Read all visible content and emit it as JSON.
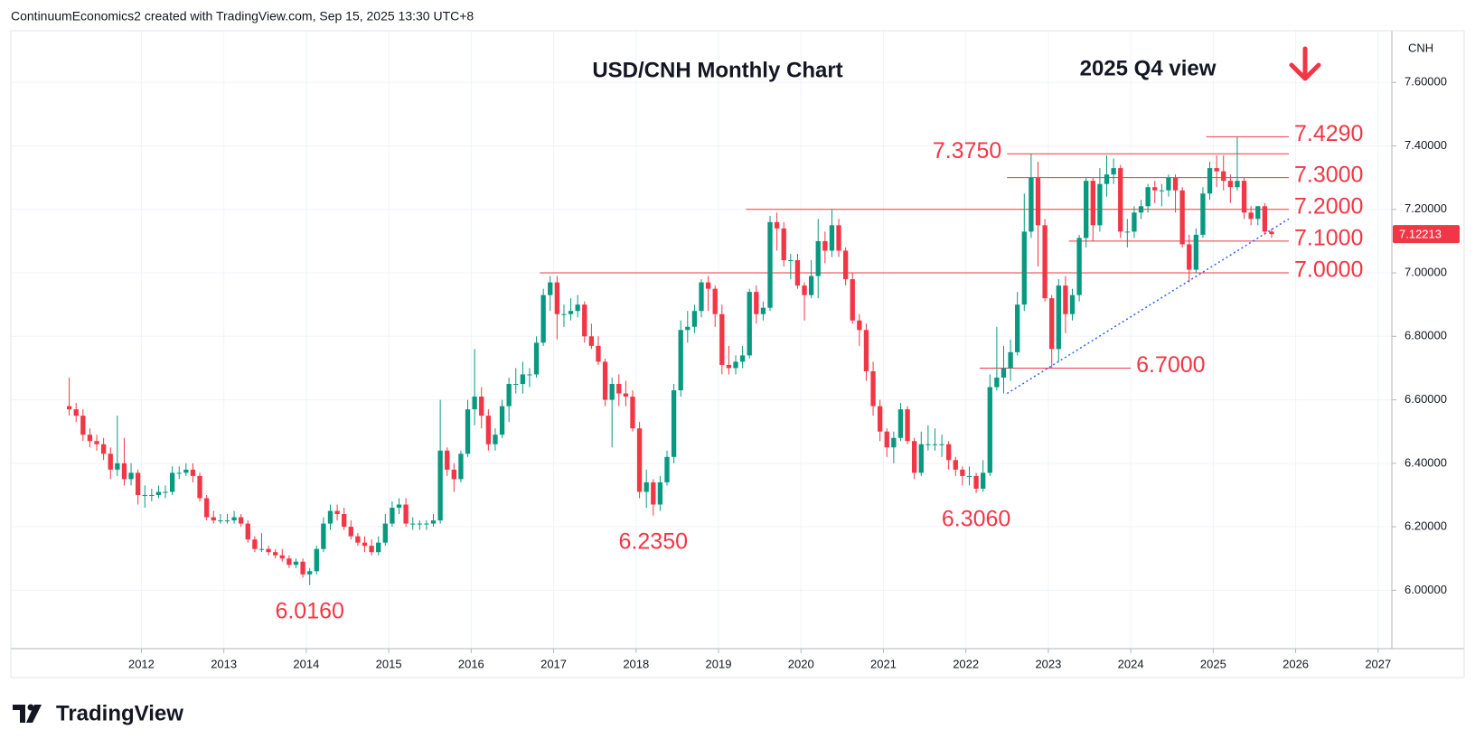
{
  "chart_data": {
    "type": "candlestick",
    "header": "ContinuumEconomics2 created with TradingView.com, Sep 15, 2025 13:30 UTC+8",
    "title": "USD/CNH Monthly Chart",
    "subtitle": "2025 Q4 view",
    "currency": "CNH",
    "brand": "TradingView",
    "up_color": "#089981",
    "down_color": "#f23645",
    "level_color": "#f23645",
    "trend_color": "#2962ff",
    "grid": true,
    "ylim": [
      5.816,
      7.763
    ],
    "yticks": [
      {
        "value": 6.0,
        "label": "6.00000"
      },
      {
        "value": 6.2,
        "label": "6.20000"
      },
      {
        "value": 6.4,
        "label": "6.40000"
      },
      {
        "value": 6.6,
        "label": "6.60000"
      },
      {
        "value": 6.8,
        "label": "6.80000"
      },
      {
        "value": 7.0,
        "label": "7.00000"
      },
      {
        "value": 7.2,
        "label": "7.20000"
      },
      {
        "value": 7.4,
        "label": "7.40000"
      },
      {
        "value": 7.6,
        "label": "7.60000"
      }
    ],
    "xlim": [
      "2010-06",
      "2027-03"
    ],
    "xticks": [
      {
        "value": "2012-01",
        "label": "2012"
      },
      {
        "value": "2013-01",
        "label": "2013"
      },
      {
        "value": "2014-01",
        "label": "2014"
      },
      {
        "value": "2015-01",
        "label": "2015"
      },
      {
        "value": "2016-01",
        "label": "2016"
      },
      {
        "value": "2017-01",
        "label": "2017"
      },
      {
        "value": "2018-01",
        "label": "2018"
      },
      {
        "value": "2019-01",
        "label": "2019"
      },
      {
        "value": "2020-01",
        "label": "2020"
      },
      {
        "value": "2021-01",
        "label": "2021"
      },
      {
        "value": "2022-01",
        "label": "2022"
      },
      {
        "value": "2023-01",
        "label": "2023"
      },
      {
        "value": "2024-01",
        "label": "2024"
      },
      {
        "value": "2025-01",
        "label": "2025"
      },
      {
        "value": "2026-01",
        "label": "2026"
      },
      {
        "value": "2027-01",
        "label": "2027"
      }
    ],
    "last_price": {
      "value": 7.12213,
      "label": "7.12213"
    },
    "levels": [
      {
        "value": 7.429,
        "label": "7.4290",
        "from": "2024-12",
        "to": "2025-12"
      },
      {
        "value": 7.375,
        "label": "7.3750",
        "from": "2022-07",
        "to": "2025-12"
      },
      {
        "value": 7.3,
        "label": "7.3000",
        "from": "2022-07",
        "to": "2025-12"
      },
      {
        "value": 7.2,
        "label": "7.2000",
        "from": "2019-05",
        "to": "2025-12"
      },
      {
        "value": 7.1,
        "label": "7.1000",
        "from": "2023-04",
        "to": "2025-12"
      },
      {
        "value": 7.0,
        "label": "7.0000",
        "from": "2016-11",
        "to": "2025-12"
      },
      {
        "value": 6.7,
        "label": "6.7000",
        "from": "2022-03",
        "to": "2024-01"
      }
    ],
    "lows": [
      {
        "value": 6.016,
        "label": "6.0160",
        "x": "2014-01"
      },
      {
        "value": 6.235,
        "label": "6.2350",
        "x": "2018-03"
      },
      {
        "value": 6.306,
        "label": "6.3060",
        "x": "2022-02"
      }
    ],
    "trendline": {
      "x": [
        "2022-07",
        "2025-12"
      ],
      "values": [
        6.62,
        7.17
      ]
    },
    "x": [
      "2011-02",
      "2011-03",
      "2011-04",
      "2011-05",
      "2011-06",
      "2011-07",
      "2011-08",
      "2011-09",
      "2011-10",
      "2011-11",
      "2011-12",
      "2012-01",
      "2012-02",
      "2012-03",
      "2012-04",
      "2012-05",
      "2012-06",
      "2012-07",
      "2012-08",
      "2012-09",
      "2012-10",
      "2012-11",
      "2012-12",
      "2013-01",
      "2013-02",
      "2013-03",
      "2013-04",
      "2013-05",
      "2013-06",
      "2013-07",
      "2013-08",
      "2013-09",
      "2013-10",
      "2013-11",
      "2013-12",
      "2014-01",
      "2014-02",
      "2014-03",
      "2014-04",
      "2014-05",
      "2014-06",
      "2014-07",
      "2014-08",
      "2014-09",
      "2014-10",
      "2014-11",
      "2014-12",
      "2015-01",
      "2015-02",
      "2015-03",
      "2015-04",
      "2015-05",
      "2015-06",
      "2015-07",
      "2015-08",
      "2015-09",
      "2015-10",
      "2015-11",
      "2015-12",
      "2016-01",
      "2016-02",
      "2016-03",
      "2016-04",
      "2016-05",
      "2016-06",
      "2016-07",
      "2016-08",
      "2016-09",
      "2016-10",
      "2016-11",
      "2016-12",
      "2017-01",
      "2017-02",
      "2017-03",
      "2017-04",
      "2017-05",
      "2017-06",
      "2017-07",
      "2017-08",
      "2017-09",
      "2017-10",
      "2017-11",
      "2017-12",
      "2018-01",
      "2018-02",
      "2018-03",
      "2018-04",
      "2018-05",
      "2018-06",
      "2018-07",
      "2018-08",
      "2018-09",
      "2018-10",
      "2018-11",
      "2018-12",
      "2019-01",
      "2019-02",
      "2019-03",
      "2019-04",
      "2019-05",
      "2019-06",
      "2019-07",
      "2019-08",
      "2019-09",
      "2019-10",
      "2019-11",
      "2019-12",
      "2020-01",
      "2020-02",
      "2020-03",
      "2020-04",
      "2020-05",
      "2020-06",
      "2020-07",
      "2020-08",
      "2020-09",
      "2020-10",
      "2020-11",
      "2020-12",
      "2021-01",
      "2021-02",
      "2021-03",
      "2021-04",
      "2021-05",
      "2021-06",
      "2021-07",
      "2021-08",
      "2021-09",
      "2021-10",
      "2021-11",
      "2021-12",
      "2022-01",
      "2022-02",
      "2022-03",
      "2022-04",
      "2022-05",
      "2022-06",
      "2022-07",
      "2022-08",
      "2022-09",
      "2022-10",
      "2022-11",
      "2022-12",
      "2023-01",
      "2023-02",
      "2023-03",
      "2023-04",
      "2023-05",
      "2023-06",
      "2023-07",
      "2023-08",
      "2023-09",
      "2023-10",
      "2023-11",
      "2023-12",
      "2024-01",
      "2024-02",
      "2024-03",
      "2024-04",
      "2024-05",
      "2024-06",
      "2024-07",
      "2024-08",
      "2024-09",
      "2024-10",
      "2024-11",
      "2024-12",
      "2025-01",
      "2025-02",
      "2025-03",
      "2025-04",
      "2025-05",
      "2025-06",
      "2025-07",
      "2025-08",
      "2025-09"
    ],
    "ohlc": [
      [
        6.58,
        6.67,
        6.55,
        6.57
      ],
      [
        6.57,
        6.59,
        6.53,
        6.55
      ],
      [
        6.55,
        6.57,
        6.47,
        6.49
      ],
      [
        6.49,
        6.51,
        6.45,
        6.47
      ],
      [
        6.47,
        6.49,
        6.44,
        6.46
      ],
      [
        6.46,
        6.48,
        6.41,
        6.43
      ],
      [
        6.43,
        6.45,
        6.35,
        6.38
      ],
      [
        6.38,
        6.55,
        6.36,
        6.4
      ],
      [
        6.4,
        6.48,
        6.33,
        6.35
      ],
      [
        6.35,
        6.4,
        6.33,
        6.37
      ],
      [
        6.37,
        6.38,
        6.27,
        6.3
      ],
      [
        6.3,
        6.33,
        6.26,
        6.3
      ],
      [
        6.3,
        6.32,
        6.28,
        6.3
      ],
      [
        6.3,
        6.33,
        6.29,
        6.31
      ],
      [
        6.31,
        6.33,
        6.29,
        6.31
      ],
      [
        6.31,
        6.39,
        6.3,
        6.37
      ],
      [
        6.37,
        6.39,
        6.35,
        6.37
      ],
      [
        6.37,
        6.4,
        6.36,
        6.38
      ],
      [
        6.38,
        6.4,
        6.34,
        6.36
      ],
      [
        6.36,
        6.37,
        6.28,
        6.29
      ],
      [
        6.29,
        6.3,
        6.22,
        6.23
      ],
      [
        6.23,
        6.25,
        6.21,
        6.22
      ],
      [
        6.22,
        6.24,
        6.21,
        6.22
      ],
      [
        6.22,
        6.24,
        6.21,
        6.22
      ],
      [
        6.22,
        6.25,
        6.21,
        6.23
      ],
      [
        6.23,
        6.24,
        6.2,
        6.21
      ],
      [
        6.21,
        6.22,
        6.15,
        6.16
      ],
      [
        6.16,
        6.17,
        6.12,
        6.13
      ],
      [
        6.13,
        6.18,
        6.12,
        6.13
      ],
      [
        6.13,
        6.14,
        6.11,
        6.12
      ],
      [
        6.12,
        6.13,
        6.1,
        6.11
      ],
      [
        6.11,
        6.13,
        6.09,
        6.1
      ],
      [
        6.1,
        6.11,
        6.07,
        6.08
      ],
      [
        6.08,
        6.1,
        6.07,
        6.09
      ],
      [
        6.09,
        6.1,
        6.04,
        6.05
      ],
      [
        6.05,
        6.07,
        6.016,
        6.06
      ],
      [
        6.06,
        6.14,
        6.05,
        6.13
      ],
      [
        6.13,
        6.23,
        6.12,
        6.21
      ],
      [
        6.21,
        6.27,
        6.19,
        6.25
      ],
      [
        6.25,
        6.27,
        6.22,
        6.24
      ],
      [
        6.24,
        6.26,
        6.19,
        6.2
      ],
      [
        6.2,
        6.22,
        6.16,
        6.17
      ],
      [
        6.17,
        6.18,
        6.14,
        6.15
      ],
      [
        6.15,
        6.17,
        6.12,
        6.14
      ],
      [
        6.14,
        6.16,
        6.11,
        6.12
      ],
      [
        6.12,
        6.17,
        6.11,
        6.15
      ],
      [
        6.15,
        6.24,
        6.14,
        6.21
      ],
      [
        6.21,
        6.28,
        6.2,
        6.26
      ],
      [
        6.26,
        6.29,
        6.24,
        6.27
      ],
      [
        6.27,
        6.29,
        6.2,
        6.21
      ],
      [
        6.21,
        6.23,
        6.19,
        6.21
      ],
      [
        6.21,
        6.22,
        6.19,
        6.21
      ],
      [
        6.21,
        6.22,
        6.19,
        6.21
      ],
      [
        6.21,
        6.24,
        6.2,
        6.22
      ],
      [
        6.22,
        6.6,
        6.21,
        6.44
      ],
      [
        6.44,
        6.45,
        6.36,
        6.38
      ],
      [
        6.38,
        6.4,
        6.31,
        6.35
      ],
      [
        6.35,
        6.44,
        6.34,
        6.43
      ],
      [
        6.43,
        6.6,
        6.42,
        6.57
      ],
      [
        6.57,
        6.76,
        6.52,
        6.61
      ],
      [
        6.61,
        6.64,
        6.51,
        6.55
      ],
      [
        6.55,
        6.57,
        6.44,
        6.46
      ],
      [
        6.46,
        6.51,
        6.44,
        6.49
      ],
      [
        6.49,
        6.6,
        6.48,
        6.58
      ],
      [
        6.58,
        6.67,
        6.53,
        6.65
      ],
      [
        6.65,
        6.7,
        6.62,
        6.65
      ],
      [
        6.65,
        6.72,
        6.62,
        6.68
      ],
      [
        6.68,
        6.7,
        6.64,
        6.68
      ],
      [
        6.68,
        6.8,
        6.67,
        6.78
      ],
      [
        6.78,
        6.95,
        6.77,
        6.93
      ],
      [
        6.93,
        6.99,
        6.88,
        6.97
      ],
      [
        6.97,
        6.99,
        6.79,
        6.87
      ],
      [
        6.87,
        6.9,
        6.83,
        6.87
      ],
      [
        6.87,
        6.92,
        6.85,
        6.88
      ],
      [
        6.88,
        6.93,
        6.86,
        6.9
      ],
      [
        6.9,
        6.91,
        6.78,
        6.8
      ],
      [
        6.8,
        6.84,
        6.76,
        6.77
      ],
      [
        6.77,
        6.8,
        6.71,
        6.72
      ],
      [
        6.72,
        6.73,
        6.58,
        6.6
      ],
      [
        6.6,
        6.67,
        6.45,
        6.65
      ],
      [
        6.65,
        6.68,
        6.58,
        6.62
      ],
      [
        6.62,
        6.66,
        6.58,
        6.61
      ],
      [
        6.61,
        6.63,
        6.5,
        6.51
      ],
      [
        6.51,
        6.53,
        6.29,
        6.31
      ],
      [
        6.31,
        6.38,
        6.26,
        6.34
      ],
      [
        6.34,
        6.35,
        6.235,
        6.27
      ],
      [
        6.27,
        6.36,
        6.25,
        6.34
      ],
      [
        6.34,
        6.44,
        6.33,
        6.42
      ],
      [
        6.42,
        6.65,
        6.4,
        6.63
      ],
      [
        6.63,
        6.85,
        6.61,
        6.82
      ],
      [
        6.82,
        6.88,
        6.78,
        6.83
      ],
      [
        6.83,
        6.9,
        6.81,
        6.88
      ],
      [
        6.88,
        6.98,
        6.86,
        6.97
      ],
      [
        6.97,
        6.99,
        6.88,
        6.95
      ],
      [
        6.95,
        6.96,
        6.83,
        6.87
      ],
      [
        6.87,
        6.9,
        6.68,
        6.71
      ],
      [
        6.71,
        6.77,
        6.68,
        6.7
      ],
      [
        6.7,
        6.74,
        6.68,
        6.72
      ],
      [
        6.72,
        6.77,
        6.7,
        6.74
      ],
      [
        6.74,
        6.95,
        6.73,
        6.94
      ],
      [
        6.94,
        6.96,
        6.84,
        6.87
      ],
      [
        6.87,
        6.91,
        6.85,
        6.89
      ],
      [
        6.89,
        7.18,
        6.88,
        7.16
      ],
      [
        7.16,
        7.19,
        7.07,
        7.14
      ],
      [
        7.14,
        7.16,
        7.02,
        7.04
      ],
      [
        7.04,
        7.06,
        6.98,
        7.04
      ],
      [
        7.04,
        7.06,
        6.95,
        6.96
      ],
      [
        6.96,
        6.97,
        6.85,
        6.93
      ],
      [
        6.93,
        7.04,
        6.92,
        6.99
      ],
      [
        6.99,
        7.17,
        6.92,
        7.1
      ],
      [
        7.1,
        7.13,
        7.03,
        7.07
      ],
      [
        7.07,
        7.2,
        7.05,
        7.15
      ],
      [
        7.15,
        7.17,
        7.05,
        7.07
      ],
      [
        7.07,
        7.08,
        6.96,
        6.98
      ],
      [
        6.98,
        7.0,
        6.84,
        6.85
      ],
      [
        6.85,
        6.87,
        6.77,
        6.82
      ],
      [
        6.82,
        6.84,
        6.66,
        6.69
      ],
      [
        6.69,
        6.72,
        6.55,
        6.58
      ],
      [
        6.58,
        6.6,
        6.47,
        6.5
      ],
      [
        6.5,
        6.51,
        6.42,
        6.45
      ],
      [
        6.45,
        6.5,
        6.4,
        6.48
      ],
      [
        6.48,
        6.59,
        6.47,
        6.57
      ],
      [
        6.57,
        6.58,
        6.46,
        6.47
      ],
      [
        6.47,
        6.48,
        6.35,
        6.37
      ],
      [
        6.37,
        6.5,
        6.36,
        6.46
      ],
      [
        6.46,
        6.52,
        6.44,
        6.46
      ],
      [
        6.46,
        6.51,
        6.44,
        6.46
      ],
      [
        6.46,
        6.49,
        6.42,
        6.46
      ],
      [
        6.46,
        6.47,
        6.38,
        6.41
      ],
      [
        6.41,
        6.42,
        6.36,
        6.38
      ],
      [
        6.38,
        6.39,
        6.33,
        6.36
      ],
      [
        6.36,
        6.39,
        6.33,
        6.36
      ],
      [
        6.36,
        6.37,
        6.306,
        6.32
      ],
      [
        6.32,
        6.41,
        6.31,
        6.37
      ],
      [
        6.37,
        6.68,
        6.36,
        6.64
      ],
      [
        6.64,
        6.83,
        6.63,
        6.67
      ],
      [
        6.67,
        6.77,
        6.62,
        6.7
      ],
      [
        6.7,
        6.79,
        6.66,
        6.75
      ],
      [
        6.75,
        6.94,
        6.74,
        6.9
      ],
      [
        6.9,
        7.25,
        6.88,
        7.13
      ],
      [
        7.13,
        7.375,
        7.11,
        7.3
      ],
      [
        7.3,
        7.35,
        7.02,
        7.15
      ],
      [
        7.15,
        7.17,
        6.91,
        6.92
      ],
      [
        6.92,
        6.93,
        6.7,
        6.76
      ],
      [
        6.76,
        6.98,
        6.72,
        6.96
      ],
      [
        6.96,
        6.99,
        6.81,
        6.87
      ],
      [
        6.87,
        6.95,
        6.85,
        6.93
      ],
      [
        6.93,
        7.12,
        6.91,
        7.11
      ],
      [
        7.11,
        7.3,
        7.08,
        7.29
      ],
      [
        7.29,
        7.3,
        7.1,
        7.15
      ],
      [
        7.15,
        7.33,
        7.13,
        7.28
      ],
      [
        7.28,
        7.37,
        7.24,
        7.31
      ],
      [
        7.31,
        7.36,
        7.28,
        7.33
      ],
      [
        7.33,
        7.34,
        7.11,
        7.13
      ],
      [
        7.13,
        7.17,
        7.08,
        7.13
      ],
      [
        7.13,
        7.21,
        7.11,
        7.19
      ],
      [
        7.19,
        7.23,
        7.17,
        7.21
      ],
      [
        7.21,
        7.28,
        7.19,
        7.27
      ],
      [
        7.27,
        7.29,
        7.22,
        7.26
      ],
      [
        7.26,
        7.28,
        7.21,
        7.26
      ],
      [
        7.26,
        7.31,
        7.24,
        7.3
      ],
      [
        7.3,
        7.31,
        7.19,
        7.26
      ],
      [
        7.26,
        7.27,
        7.08,
        7.09
      ],
      [
        7.09,
        7.12,
        6.97,
        7.01
      ],
      [
        7.01,
        7.14,
        7.0,
        7.12
      ],
      [
        7.12,
        7.27,
        7.11,
        7.25
      ],
      [
        7.25,
        7.35,
        7.23,
        7.33
      ],
      [
        7.33,
        7.37,
        7.27,
        7.32
      ],
      [
        7.32,
        7.37,
        7.26,
        7.29
      ],
      [
        7.29,
        7.31,
        7.22,
        7.27
      ],
      [
        7.27,
        7.429,
        7.26,
        7.29
      ],
      [
        7.29,
        7.3,
        7.17,
        7.19
      ],
      [
        7.19,
        7.21,
        7.15,
        7.17
      ],
      [
        7.17,
        7.21,
        7.15,
        7.21
      ],
      [
        7.21,
        7.22,
        7.12,
        7.13
      ],
      [
        7.13,
        7.14,
        7.11,
        7.12213
      ]
    ]
  }
}
